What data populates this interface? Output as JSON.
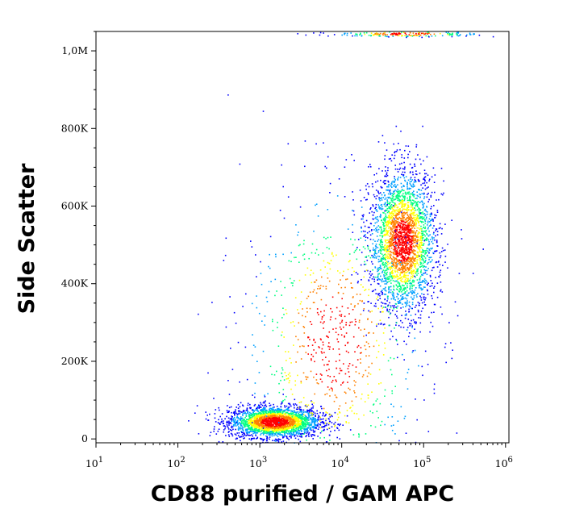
{
  "chart_data": {
    "type": "scatter",
    "xlabel": "CD88 purified / GAM APC",
    "ylabel": "Side Scatter",
    "x_scale": "log",
    "xlim": [
      10,
      1100000
    ],
    "ylim": [
      -10000,
      1050000
    ],
    "x_ticks": [
      {
        "value": 10,
        "base": "10",
        "exp": "1"
      },
      {
        "value": 100,
        "base": "10",
        "exp": "2"
      },
      {
        "value": 1000,
        "base": "10",
        "exp": "3"
      },
      {
        "value": 10000,
        "base": "10",
        "exp": "4"
      },
      {
        "value": 100000,
        "base": "10",
        "exp": "5"
      },
      {
        "value": 1000000,
        "base": "10",
        "exp": "6"
      }
    ],
    "y_ticks": [
      {
        "value": 0,
        "label": "0"
      },
      {
        "value": 200000,
        "label": "200K"
      },
      {
        "value": 400000,
        "label": "400K"
      },
      {
        "value": 600000,
        "label": "600K"
      },
      {
        "value": 800000,
        "label": "800K"
      },
      {
        "value": 1000000,
        "label": "1,0M"
      }
    ],
    "density_colormap": [
      "#0000ff",
      "#00a0ff",
      "#00ff80",
      "#ffff00",
      "#ff8000",
      "#ff0000"
    ],
    "populations": [
      {
        "x_center": 1500,
        "y_center": 45000,
        "x_spread_decades": 0.28,
        "y_spread": 20000,
        "events": 2600
      },
      {
        "x_center": 55000,
        "y_center": 510000,
        "x_spread_decades": 0.2,
        "y_spread": 90000,
        "events": 2800
      },
      {
        "x_center": 8000,
        "y_center": 250000,
        "x_spread_decades": 0.55,
        "y_spread": 200000,
        "events": 900
      },
      {
        "x_center": 60000,
        "y_center": 1045000,
        "x_spread_decades": 0.45,
        "y_spread": 4000,
        "events": 200
      }
    ],
    "grid": false,
    "legend": "none"
  }
}
